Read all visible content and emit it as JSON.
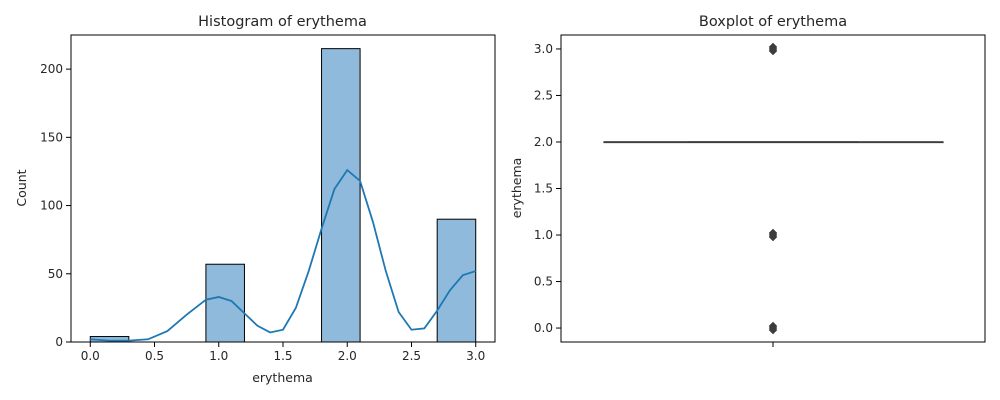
{
  "chart_data": [
    {
      "type": "bar",
      "title": "Histogram of erythema",
      "xlabel": "erythema",
      "ylabel": "Count",
      "xlim": [
        -0.15,
        3.15
      ],
      "ylim": [
        0,
        225
      ],
      "xticks": [
        0.0,
        0.5,
        1.0,
        1.5,
        2.0,
        2.5,
        3.0
      ],
      "xtick_labels": [
        "0.0",
        "0.5",
        "1.0",
        "1.5",
        "2.0",
        "2.5",
        "3.0"
      ],
      "yticks": [
        0,
        50,
        100,
        150,
        200
      ],
      "ytick_labels": [
        "0",
        "50",
        "100",
        "150",
        "200"
      ],
      "bin_width": 0.3,
      "bins": [
        {
          "start": 0.0,
          "count": 4
        },
        {
          "start": 0.9,
          "count": 57
        },
        {
          "start": 1.8,
          "count": 215
        },
        {
          "start": 2.7,
          "count": 90
        }
      ],
      "kde": {
        "x": [
          0.0,
          0.15,
          0.3,
          0.45,
          0.6,
          0.75,
          0.9,
          1.0,
          1.1,
          1.2,
          1.3,
          1.4,
          1.5,
          1.6,
          1.7,
          1.8,
          1.9,
          2.0,
          2.1,
          2.2,
          2.3,
          2.4,
          2.5,
          2.6,
          2.7,
          2.8,
          2.9,
          3.0
        ],
        "y": [
          2,
          1,
          1,
          2,
          8,
          20,
          31,
          33,
          30,
          21,
          12,
          7,
          9,
          25,
          52,
          83,
          112,
          126,
          118,
          88,
          52,
          22,
          9,
          10,
          23,
          38,
          49,
          52
        ]
      },
      "bar_color": "#8fbadb",
      "line_color": "#1f77b4"
    },
    {
      "type": "box",
      "title": "Boxplot of erythema",
      "ylabel": "erythema",
      "ylim": [
        -0.15,
        3.15
      ],
      "yticks": [
        0.0,
        0.5,
        1.0,
        1.5,
        2.0,
        2.5,
        3.0
      ],
      "ytick_labels": [
        "0.0",
        "0.5",
        "1.0",
        "1.5",
        "2.0",
        "2.5",
        "3.0"
      ],
      "q1": 2.0,
      "median": 2.0,
      "q3": 2.0,
      "whisker_low": 2.0,
      "whisker_high": 2.0,
      "outliers": [
        0.0,
        1.0,
        3.0
      ],
      "line_color": "#3f3f3f"
    }
  ]
}
